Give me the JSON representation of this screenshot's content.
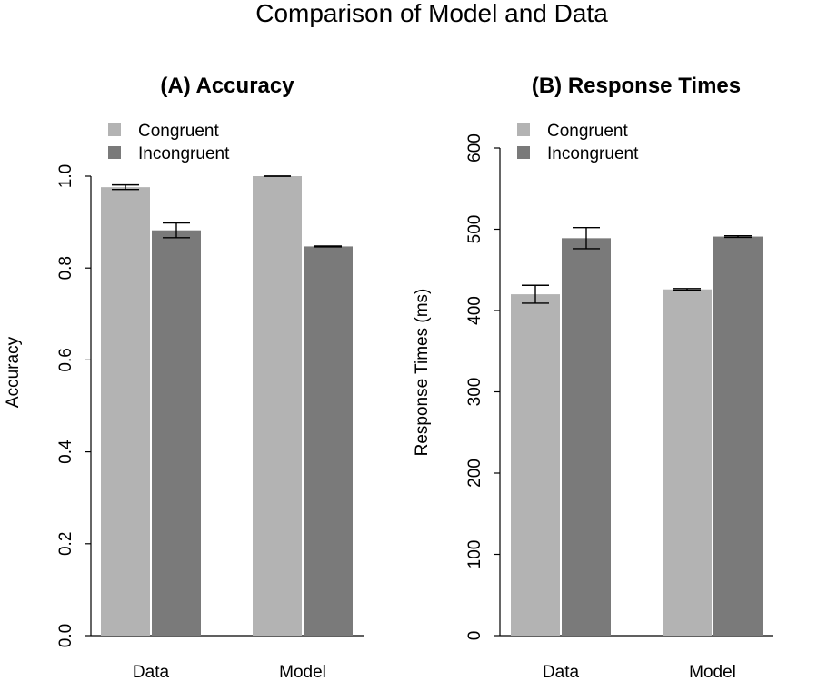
{
  "title": "Comparison of Model and Data",
  "chart_data": [
    {
      "type": "bar",
      "title": "(A) Accuracy",
      "ylabel": "Accuracy",
      "xlabel": "",
      "categories": [
        "Data",
        "Model"
      ],
      "series": [
        {
          "name": "Congruent",
          "color": "#b3b3b3",
          "values": [
            0.976,
            1.0
          ],
          "error": [
            0.005,
            0.0
          ]
        },
        {
          "name": "Incongruent",
          "color": "#7a7a7a",
          "values": [
            0.882,
            0.847
          ],
          "error": [
            0.016,
            0.001
          ]
        }
      ],
      "ylim": [
        0,
        1.0
      ],
      "yticks": [
        "0.0",
        "0.2",
        "0.4",
        "0.6",
        "0.8",
        "1.0"
      ],
      "legend": "top-left",
      "grid": false
    },
    {
      "type": "bar",
      "title": "(B) Response Times",
      "ylabel": "Response Times (ms)",
      "xlabel": "",
      "categories": [
        "Data",
        "Model"
      ],
      "series": [
        {
          "name": "Congruent",
          "color": "#b3b3b3",
          "values": [
            420,
            426
          ],
          "error": [
            11,
            1
          ]
        },
        {
          "name": "Incongruent",
          "color": "#7a7a7a",
          "values": [
            489,
            491
          ],
          "error": [
            13,
            1
          ]
        }
      ],
      "ylim": [
        0,
        600
      ],
      "yticks": [
        "0",
        "100",
        "200",
        "300",
        "400",
        "500",
        "600"
      ],
      "legend": "top-left",
      "grid": false
    }
  ]
}
